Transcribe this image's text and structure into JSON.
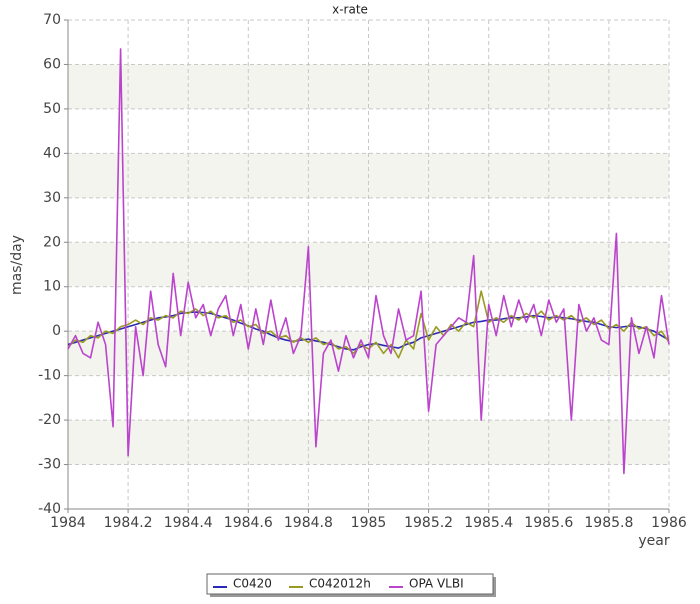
{
  "chart_data": {
    "type": "line",
    "title": "x-rate",
    "xlabel": "year",
    "ylabel": "mas/day",
    "x": [
      1984,
      1984.025,
      1984.05,
      1984.075,
      1984.1,
      1984.125,
      1984.15,
      1984.175,
      1984.2,
      1984.225,
      1984.25,
      1984.275,
      1984.3,
      1984.325,
      1984.35,
      1984.375,
      1984.4,
      1984.425,
      1984.45,
      1984.475,
      1984.5,
      1984.525,
      1984.55,
      1984.575,
      1984.6,
      1984.625,
      1984.65,
      1984.675,
      1984.7,
      1984.725,
      1984.75,
      1984.775,
      1984.8,
      1984.825,
      1984.85,
      1984.875,
      1984.9,
      1984.925,
      1984.95,
      1984.975,
      1985,
      1985.025,
      1985.05,
      1985.075,
      1985.1,
      1985.125,
      1985.15,
      1985.175,
      1985.2,
      1985.225,
      1985.25,
      1985.275,
      1985.3,
      1985.325,
      1985.35,
      1985.375,
      1985.4,
      1985.425,
      1985.45,
      1985.475,
      1985.5,
      1985.525,
      1985.55,
      1985.575,
      1985.6,
      1985.625,
      1985.65,
      1985.675,
      1985.7,
      1985.725,
      1985.75,
      1985.775,
      1985.8,
      1985.825,
      1985.85,
      1985.875,
      1985.9,
      1985.925,
      1985.95,
      1985.975,
      1986
    ],
    "series": [
      {
        "name": "C0420",
        "color": "#2a2ab8",
        "values": [
          -3,
          -2.5,
          -2,
          -1.5,
          -1,
          -0.5,
          0,
          0.5,
          1,
          1.5,
          2,
          2.5,
          3,
          3.2,
          3.5,
          4,
          4.2,
          4.3,
          4.2,
          4,
          3.5,
          3,
          2.5,
          1.8,
          1.2,
          0.5,
          0,
          -0.8,
          -1.5,
          -2,
          -2.3,
          -2,
          -1.8,
          -2.2,
          -2.5,
          -3,
          -3.5,
          -4,
          -4.2,
          -3.5,
          -3,
          -2.8,
          -3.2,
          -3.5,
          -3.8,
          -3,
          -2.5,
          -1.5,
          -1,
          -0.5,
          0,
          0.5,
          1,
          1.5,
          2,
          2.2,
          2.5,
          2.5,
          2.8,
          3,
          3,
          3.2,
          3.5,
          3.3,
          3,
          3.2,
          3,
          2.8,
          2.5,
          2.2,
          2,
          1.5,
          1,
          0.8,
          1,
          1.2,
          1,
          0.5,
          0,
          -1,
          -2
        ]
      },
      {
        "name": "C042012h",
        "color": "#9a9a22",
        "values": [
          -3.5,
          -2,
          -2.5,
          -1,
          -1.5,
          0,
          -0.5,
          1,
          1.5,
          2.5,
          1.5,
          3,
          2.5,
          3.5,
          3,
          4.5,
          4,
          5,
          3.5,
          4.5,
          3,
          3.5,
          2,
          2.5,
          1,
          1.5,
          -0.5,
          0,
          -1.5,
          -1,
          -2.5,
          -1.5,
          -2.5,
          -1.5,
          -3,
          -2.5,
          -4,
          -3.5,
          -5,
          -3,
          -4,
          -2.5,
          -5,
          -3,
          -6,
          -2,
          -4,
          4,
          -2,
          1,
          -1,
          1.5,
          0,
          2,
          1,
          9,
          2,
          3,
          2,
          3.5,
          2.5,
          4,
          3,
          4.5,
          2.5,
          3.5,
          2.5,
          3.5,
          2,
          3,
          1.5,
          2.5,
          0.5,
          1.5,
          0,
          2,
          0.5,
          1,
          -1,
          0,
          -2.5
        ]
      },
      {
        "name": "OPA VLBI",
        "color": "#bb44cc",
        "values": [
          -4,
          -1,
          -5,
          -6,
          2,
          -3,
          -21.5,
          63.5,
          -28,
          1,
          -10,
          9,
          -3,
          -8,
          13,
          -1,
          11,
          3,
          6,
          -1,
          5,
          8,
          -1,
          6,
          -4,
          5,
          -3,
          7,
          -2,
          3,
          -5,
          -1,
          19,
          -26,
          -5,
          -2,
          -9,
          -1,
          -6,
          -2,
          -6,
          8,
          -1,
          -5,
          5,
          -2,
          -1,
          9,
          -18,
          -3,
          -1,
          1,
          3,
          2,
          17,
          -20,
          6,
          -1,
          8,
          1,
          7,
          2,
          6,
          -1,
          7,
          2,
          5,
          -20,
          6,
          0,
          3,
          -2,
          -3,
          22,
          -32,
          3,
          -5,
          1,
          -6,
          8,
          -3
        ]
      }
    ],
    "xlim": [
      1984,
      1986
    ],
    "xticks": [
      1984,
      1984.2,
      1984.4,
      1984.6,
      1984.8,
      1985,
      1985.2,
      1985.4,
      1985.6,
      1985.8,
      1986
    ],
    "ylim": [
      -40,
      70
    ],
    "yticks": [
      -40,
      -30,
      -20,
      -10,
      0,
      10,
      20,
      30,
      40,
      50,
      60,
      70
    ],
    "grid": true,
    "bands": true,
    "legend": "bottom"
  }
}
